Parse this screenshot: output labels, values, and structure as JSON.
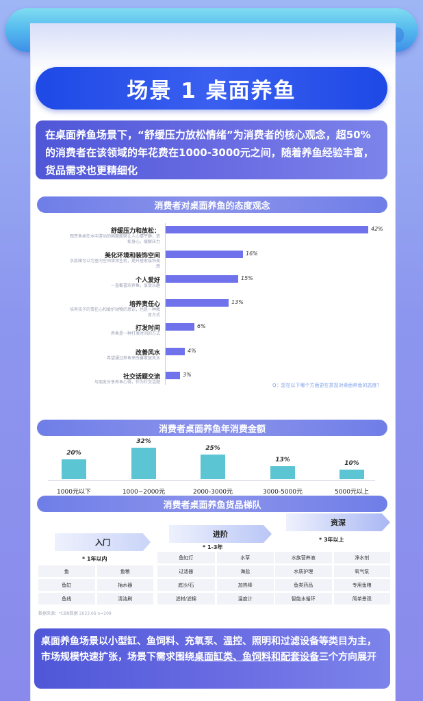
{
  "header": {
    "title": "场景 1  桌面养鱼"
  },
  "intro": {
    "text": "在桌面养鱼场景下，“舒缓压力放松情绪”为消费者的核心观念，超50%的消费者在该领域的年花费在1000-3000元之间，随着养鱼经验丰富，货品需求也更精细化"
  },
  "sections": {
    "attitude_title": "消费者对桌面养鱼的态度观念",
    "spend_title": "消费者桌面养鱼年消费金额",
    "tiers_title": "消费者桌面养鱼货品梯队"
  },
  "attitude_note": "Q：您在以下哪个方面更在意您对桌面养鱼的态度?",
  "attitude_items": [
    {
      "label": "舒缓压力和放松：",
      "desc": "观赏鱼类在水中游动的画面能够让人心情平静，放松身心，缓解压力"
    },
    {
      "label": "美化环境和装饰空间",
      "desc": "水族箱可以为室内空间增添生机，提升居家装饰美感"
    },
    {
      "label": "个人爱好",
      "desc": "一直都喜欢养鱼，享受乐趣"
    },
    {
      "label": "培养责任心",
      "desc": "培养孩子的责任心和爱护动物的意识，也是一种教育方式"
    },
    {
      "label": "打发时间",
      "desc": "养鱼是一种打发时间的方式"
    },
    {
      "label": "改善风水",
      "desc": "希望通过养鱼来改善家居风水"
    },
    {
      "label": "社交话题交流",
      "desc": "与朋友分享养鱼心得，作为社交话题"
    }
  ],
  "spend_items": [
    {
      "label": "1000元以下"
    },
    {
      "label": "1000~2000元"
    },
    {
      "label": "2000-3000元"
    },
    {
      "label": "3000-5000元"
    },
    {
      "label": "5000元以上"
    }
  ],
  "tiers": [
    {
      "name": "入门",
      "sub": "* 1年以内",
      "items": [
        "鱼",
        "鱼粮",
        "鱼缸",
        "抽水器",
        "鱼线",
        "清洁刷"
      ]
    },
    {
      "name": "进阶",
      "sub": "* 1-3年",
      "items": [
        "鱼缸灯",
        "水草",
        "过滤器",
        "海盐",
        "底沙/石",
        "加热棒",
        "滤材/滤棉",
        "温度计"
      ]
    },
    {
      "name": "资深",
      "sub": "* 3年以上",
      "items": [
        "水族营养液",
        "净水剂",
        "水质护理",
        "氧气泵",
        "鱼类药品",
        "专用鱼粮",
        "智能水循环",
        "简单景观"
      ]
    }
  ],
  "source_note": "数据来源：*CBN数据 2023.06 n=209",
  "outro": {
    "part1": "桌面养鱼场景以小型缸、鱼饲料、充氧泵、温控、照明和过滤设备等类目为主，市场规模快速扩张，场景下需求围绕",
    "highlight": "桌面缸类、鱼饲料和配套设备",
    "part2": "三个方向展开"
  },
  "chart_data": [
    {
      "type": "bar",
      "orientation": "horizontal",
      "title": "消费者对桌面养鱼的态度观念",
      "categories": [
        "舒缓压力和放松：",
        "美化环境和装饰空间",
        "个人爱好",
        "培养责任心",
        "打发时间",
        "改善风水",
        "社交话题交流"
      ],
      "values": [
        42,
        16,
        15,
        13,
        6,
        4,
        3
      ],
      "value_labels": [
        "42%",
        "16%",
        "15%",
        "13%",
        "6%",
        "4%",
        "3%"
      ],
      "unit": "%",
      "color": "#6f72ea"
    },
    {
      "type": "bar",
      "orientation": "vertical",
      "title": "消费者桌面养鱼年消费金额",
      "categories": [
        "1000元以下",
        "1000~2000元",
        "2000-3000元",
        "3000-5000元",
        "5000元以上"
      ],
      "values": [
        20,
        32,
        25,
        13,
        10
      ],
      "value_labels": [
        "20%",
        "32%",
        "25%",
        "13%",
        "10%"
      ],
      "unit": "%",
      "color": "#5bc5d3"
    }
  ],
  "colors": {
    "title_blue": "#1e49e6",
    "box_purple": "#5a60dc",
    "bar_purple": "#6f72ea",
    "bar_teal": "#5bc5d3"
  }
}
